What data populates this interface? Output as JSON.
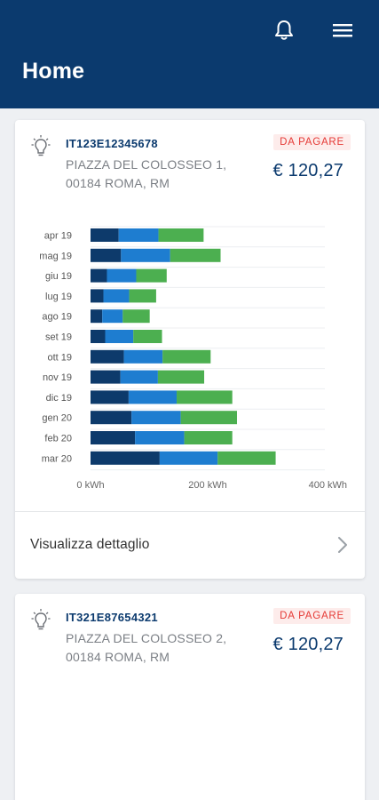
{
  "header": {
    "title": "Home",
    "bell_icon": "bell-icon",
    "menu_icon": "hamburger-menu-icon",
    "background": "#0b3a6e"
  },
  "cards": [
    {
      "pod": "IT123E12345678",
      "address_line1": "PIAZZA DEL COLOSSEO 1,",
      "address_line2": "00184 ROMA, RM",
      "status": "DA PAGARE",
      "amount": "€ 120,27",
      "detail_label": "Visualizza dettaglio"
    },
    {
      "pod": "IT321E87654321",
      "address_line1": "PIAZZA DEL COLOSSEO 2,",
      "address_line2": "00184 ROMA, RM",
      "status": "DA PAGARE",
      "amount": "€ 120,27"
    }
  ],
  "colors": {
    "primary": "#0b3a6e",
    "badge_text": "#e53935",
    "badge_bg": "#fdeceb",
    "series_dark": "#0d3a6b",
    "series_mid": "#1e7dd0",
    "series_green": "#4caf50"
  },
  "chart_data": {
    "type": "bar",
    "orientation": "horizontal",
    "stacked": true,
    "categories": [
      "apr 19",
      "mag 19",
      "giu 19",
      "lug 19",
      "ago 19",
      "set 19",
      "ott 19",
      "nov 19",
      "dic 19",
      "gen 20",
      "feb 20",
      "mar 20"
    ],
    "series": [
      {
        "color": "#0d3a6b",
        "values": [
          48,
          52,
          28,
          22,
          20,
          25,
          57,
          51,
          65,
          70,
          76,
          118
        ]
      },
      {
        "color": "#1e7dd0",
        "values": [
          68,
          84,
          50,
          44,
          35,
          48,
          66,
          64,
          82,
          84,
          84,
          99
        ]
      },
      {
        "color": "#4caf50",
        "values": [
          77,
          86,
          52,
          46,
          46,
          49,
          82,
          79,
          95,
          96,
          82,
          99
        ]
      }
    ],
    "xlim": [
      0,
      400
    ],
    "xticks": [
      "0 kWh",
      "200 kWh",
      "400 kWh"
    ],
    "xtick_values": [
      0,
      200,
      400
    ],
    "grid": true
  }
}
